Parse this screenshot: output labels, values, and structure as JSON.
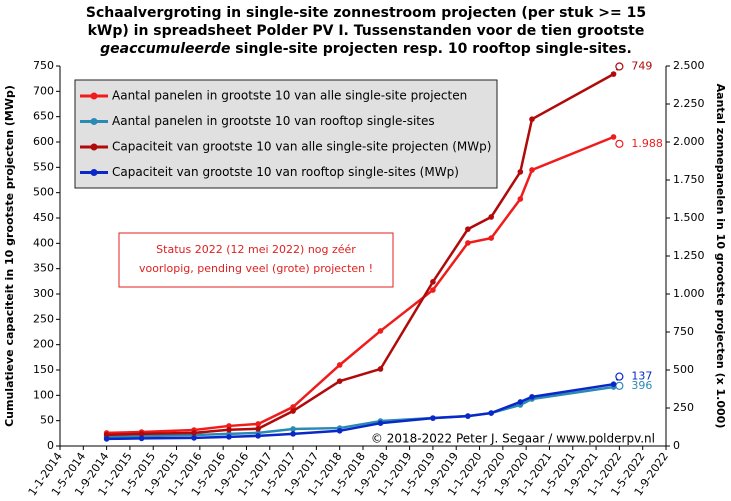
{
  "chart_data": {
    "type": "line",
    "title_lines": [
      "Schaalvergroting in single-site zonnestroom projecten (per stuk >= 15",
      "kWp) in spreadsheet Polder PV I. Tussenstanden voor de tien grootste"
    ],
    "title_line3": [
      "geaccumuleerde",
      " single-site projecten resp. 10 rooftop single-sites."
    ],
    "ylabel": "Cumulatieve capaciteit in 10 grootste projecten (MWp)",
    "y2label": "Aantal zonnepanelen in 10 grootste projecten (x 1.000)",
    "annotation": [
      "Status 2022 (12 mei 2022) nog zéér",
      "voorlopig, pending veel (grote) projecten !"
    ],
    "credit": "© 2018-2022  Peter J. Segaar / www.polderpv.nl",
    "xlim": [
      "1-1-2014",
      "1-9-2022"
    ],
    "xticks": [
      "1-1-2014",
      "1-5-2014",
      "1-9-2014",
      "1-1-2015",
      "1-5-2015",
      "1-9-2015",
      "1-1-2016",
      "1-5-2016",
      "1-9-2016",
      "1-1-2017",
      "1-5-2017",
      "1-9-2017",
      "1-1-2018",
      "1-5-2018",
      "1-9-2018",
      "1-1-2019",
      "1-5-2019",
      "1-9-2019",
      "1-1-2020",
      "1-5-2020",
      "1-9-2020",
      "1-1-2021",
      "1-5-2021",
      "1-9-2021",
      "1-1-2022",
      "1-5-2022",
      "1-9-2022"
    ],
    "x": [
      "1-9-2014",
      "1-3-2015",
      "1-12-2015",
      "1-6-2016",
      "1-11-2016",
      "1-5-2017",
      "1-1-2018",
      "1-8-2018",
      "1-5-2019",
      "1-11-2019",
      "1-3-2020",
      "1-8-2020",
      "1-10-2020",
      "1-12-2021"
    ],
    "status_x": "1-1-2022",
    "ylim": [
      0,
      750
    ],
    "yticks": [
      0,
      50,
      100,
      150,
      200,
      250,
      300,
      350,
      400,
      450,
      500,
      550,
      600,
      650,
      700,
      750
    ],
    "y2lim": [
      0,
      2500
    ],
    "y2ticks": [
      0,
      250,
      500,
      750,
      {
        "value": 1000,
        "label": "1.000"
      },
      {
        "value": 1250,
        "label": "1.250"
      },
      {
        "value": 1500,
        "label": "1.500"
      },
      {
        "value": 1750,
        "label": "1.750"
      },
      {
        "value": 2000,
        "label": "2.000"
      },
      {
        "value": 2250,
        "label": "2.250"
      },
      {
        "value": 2500,
        "label": "2.500"
      }
    ],
    "legend": "upper left",
    "series": [
      {
        "name": "Aantal panelen in grootste 10 van alle single-site projecten",
        "color": "#f01c1c",
        "axis": "y2",
        "values": [
          86,
          92,
          105,
          132,
          145,
          257,
          533,
          757,
          1026,
          1336,
          1368,
          1625,
          1816,
          2033
        ],
        "status_value": 1988,
        "status_label": "1.988"
      },
      {
        "name": "Aantal panelen in grootste 10 van rooftop single-sites",
        "color": "#2a8ab4",
        "axis": "y2",
        "values": [
          59,
          65,
          72,
          80,
          86,
          112,
          118,
          164,
          184,
          197,
          217,
          270,
          309,
          388
        ],
        "status_value": 396,
        "status_label": "396"
      },
      {
        "name": "Capaciteit van grootste 10 van alle single-site projecten (MWp)",
        "color": "#b00a0a",
        "axis": "y",
        "values": [
          22,
          24,
          26,
          32,
          34,
          69,
          128,
          152,
          324,
          428,
          452,
          541,
          645,
          734
        ],
        "status_value": 749,
        "status_label": "749"
      },
      {
        "name": "Capaciteit van grootste 10 van rooftop single-sites (MWp)",
        "color": "#0a28c8",
        "axis": "y",
        "values": [
          14,
          15,
          16,
          18,
          20,
          24,
          30,
          45,
          55,
          59,
          65,
          87,
          97,
          122
        ],
        "status_value": 137,
        "status_label": "137"
      }
    ]
  }
}
